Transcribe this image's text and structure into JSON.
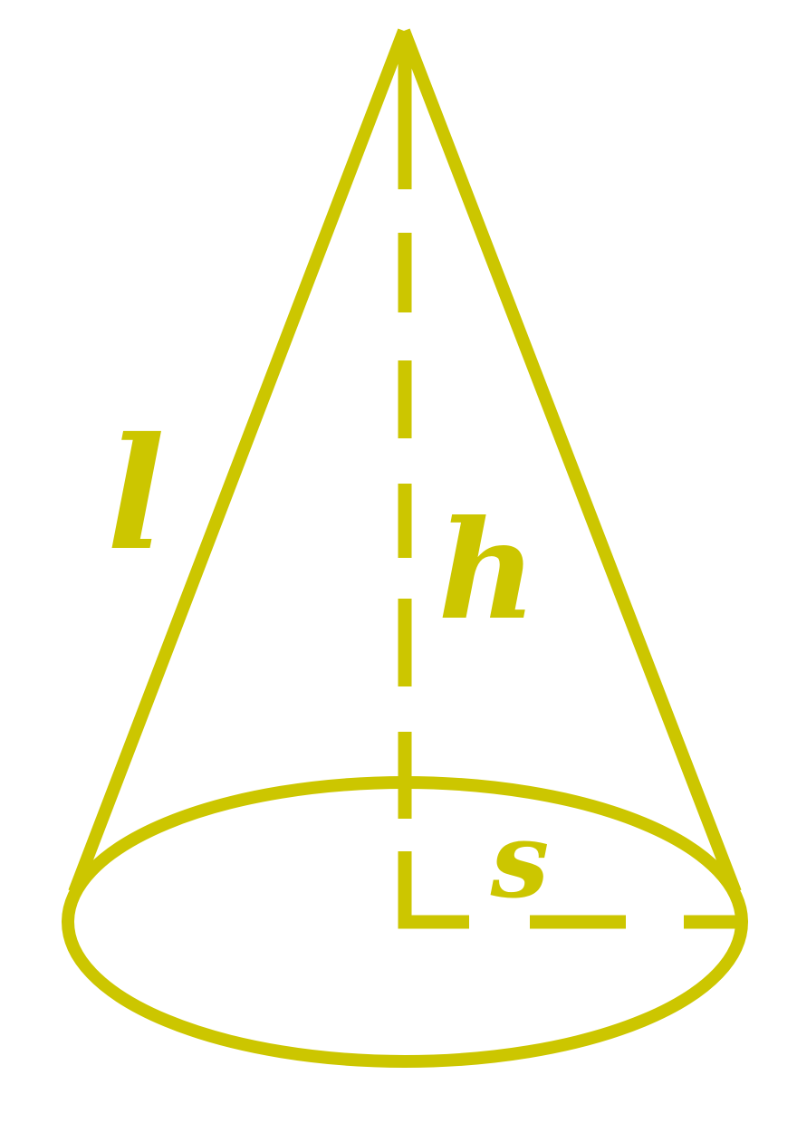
{
  "diagram": {
    "shape": "cone",
    "stroke_color": "#CCC600",
    "labels": {
      "slant_height": "l",
      "height": "h",
      "radius": "s"
    }
  }
}
